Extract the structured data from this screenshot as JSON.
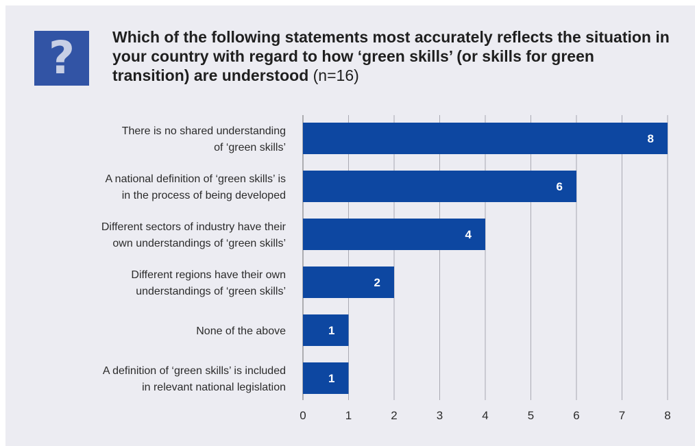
{
  "header": {
    "icon": "question-mark-icon",
    "question": "Which of the following statements most accurately reflects the situation in your country with regard to how ‘green skills’ (or skills for green transition) are understood",
    "n_label": "(n=16)"
  },
  "colors": {
    "bar": "#0d47a1",
    "background": "#ececf2",
    "icon_bg": "#3254a5"
  },
  "chart_data": {
    "type": "bar",
    "orientation": "horizontal",
    "categories": [
      [
        "There is no shared understanding",
        "of ‘green skills’"
      ],
      [
        "A national definition of ‘green skills’ is",
        "in the process of being developed"
      ],
      [
        "Different sectors of industry have their",
        "own understandings of ‘green skills’"
      ],
      [
        "Different regions have their own",
        "understandings of ‘green skills’"
      ],
      [
        "None of the above"
      ],
      [
        "A definition of ‘green skills’ is included",
        "in relevant national legislation"
      ]
    ],
    "values": [
      8,
      6,
      4,
      2,
      1,
      1
    ],
    "xlim": [
      0,
      8
    ],
    "xticks": [
      0,
      1,
      2,
      3,
      4,
      5,
      6,
      7,
      8
    ],
    "grid": true,
    "data_labels": true
  }
}
